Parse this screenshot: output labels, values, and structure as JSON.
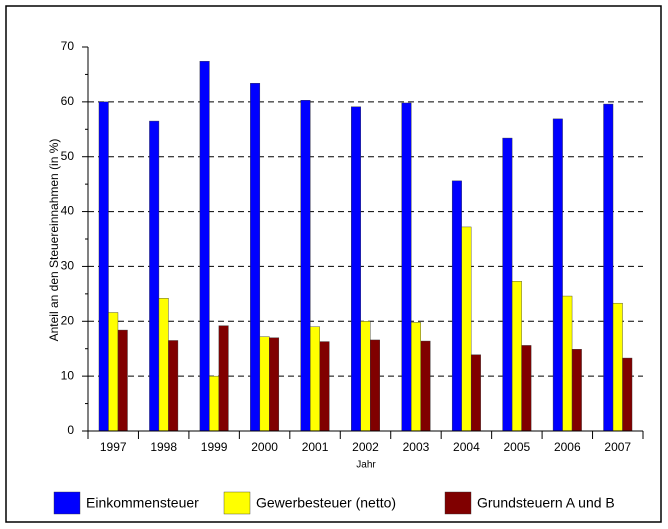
{
  "chart_data": {
    "type": "bar",
    "y_label": "Anteil an den Steuereinnahmen (in %)",
    "x_label": "Jahr",
    "categories": [
      "1997",
      "1998",
      "1999",
      "2000",
      "2001",
      "2002",
      "2003",
      "2004",
      "2005",
      "2006",
      "2007"
    ],
    "series": [
      {
        "name": "Einkommensteuer",
        "color": "#0000ff",
        "values": [
          60,
          56.5,
          67.4,
          63.4,
          60.3,
          59.1,
          59.8,
          45.6,
          53.4,
          56.9,
          59.6
        ]
      },
      {
        "name": "Gewerbesteuer (netto)",
        "color": "#ffff00",
        "values": [
          21.6,
          24.2,
          10,
          17.2,
          19,
          20,
          19.8,
          37.2,
          27.3,
          24.6,
          23.3
        ]
      },
      {
        "name": "Grundsteuern A und B",
        "color": "#800000",
        "values": [
          18.4,
          16.5,
          19.2,
          17,
          16.3,
          16.6,
          16.4,
          13.9,
          15.6,
          14.9,
          13.3
        ]
      }
    ],
    "ylim": [
      0,
      70
    ],
    "yticks": [
      0,
      10,
      20,
      30,
      40,
      50,
      60,
      70
    ],
    "grid": true
  }
}
